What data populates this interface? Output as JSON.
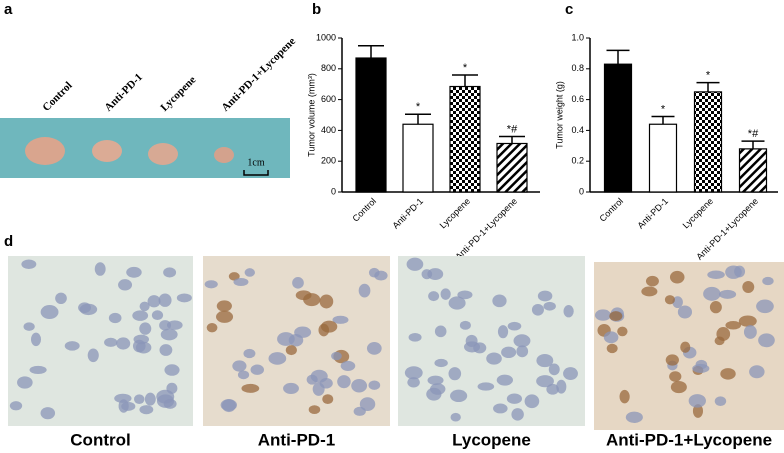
{
  "panel_labels": [
    "a",
    "b",
    "c",
    "d"
  ],
  "panel_a": {
    "labels": [
      "Control",
      "Anti-PD-1",
      "Lycopene",
      "Anti-PD-1+Lycopene"
    ],
    "scale_bar": "1cm"
  },
  "chart_data": [
    {
      "type": "bar",
      "y_label": "Tumor volume (mm³)",
      "categories": [
        "Control",
        "Anti-PD-1",
        "Lycopene",
        "Anti-PD-1+Lycopene"
      ],
      "values": [
        870,
        440,
        685,
        315
      ],
      "errors": [
        80,
        65,
        75,
        45
      ],
      "annotations": [
        null,
        "*",
        "*",
        "*#"
      ],
      "bar_styles": [
        "solid",
        "open",
        "checker",
        "hatch"
      ],
      "ylim": [
        0,
        1000
      ],
      "yticks": [
        0,
        200,
        400,
        600,
        800,
        1000
      ]
    },
    {
      "type": "bar",
      "y_label": "Tumor weight (g)",
      "categories": [
        "Control",
        "Anti-PD-1",
        "Lycopene",
        "Anti-PD-1+Lycopene"
      ],
      "values": [
        0.83,
        0.44,
        0.65,
        0.28
      ],
      "errors": [
        0.09,
        0.05,
        0.06,
        0.05
      ],
      "annotations": [
        null,
        "*",
        "*",
        "*#"
      ],
      "bar_styles": [
        "solid",
        "open",
        "checker",
        "hatch"
      ],
      "ylim": [
        0,
        1
      ],
      "yticks": [
        0,
        0.2,
        0.4,
        0.6,
        0.8,
        {
          "value": 1,
          "label": "1.0"
        }
      ]
    }
  ],
  "panel_d": {
    "labels": [
      "Control",
      "Anti-PD-1",
      "Lycopene",
      "Anti-PD-1+Lycopene"
    ]
  }
}
